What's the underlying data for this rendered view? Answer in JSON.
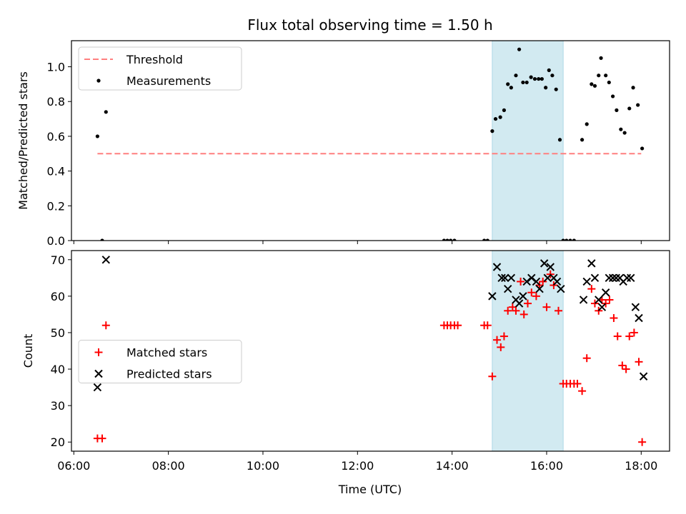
{
  "chart_data": {
    "title": "Flux total observing time = 1.50 h",
    "xlabel": "Time (UTC)",
    "xlim_hours": [
      5.95,
      18.6
    ],
    "xticks": [
      6,
      8,
      10,
      12,
      14,
      16,
      18
    ],
    "xtick_labels": [
      "06:00",
      "08:00",
      "10:00",
      "12:00",
      "14:00",
      "16:00",
      "18:00"
    ],
    "shaded_span_hours": [
      14.85,
      16.35
    ],
    "shaded_color": "#add8e6",
    "panels": [
      {
        "type": "scatter",
        "ylabel": "Matched/Predicted stars",
        "ylim": [
          0,
          1.15
        ],
        "yticks": [
          0.0,
          0.2,
          0.4,
          0.6,
          0.8,
          1.0
        ],
        "ytick_labels": [
          "0.0",
          "0.2",
          "0.4",
          "0.6",
          "0.8",
          "1.0"
        ],
        "legend_position": "upper-left",
        "threshold": {
          "name": "Threshold",
          "value": 0.5,
          "x_range": [
            6.5,
            18.0
          ],
          "color": "#ff7f7f"
        },
        "series": [
          {
            "name": "Measurements",
            "marker": "dot",
            "color": "#000000",
            "points": [
              [
                6.5,
                0.6
              ],
              [
                6.6,
                0.0
              ],
              [
                6.68,
                0.74
              ],
              [
                13.83,
                0.0
              ],
              [
                13.9,
                0.0
              ],
              [
                13.97,
                0.0
              ],
              [
                14.05,
                0.0
              ],
              [
                14.68,
                0.0
              ],
              [
                14.75,
                0.0
              ],
              [
                14.85,
                0.63
              ],
              [
                14.92,
                0.7
              ],
              [
                15.02,
                0.71
              ],
              [
                15.1,
                0.75
              ],
              [
                15.18,
                0.9
              ],
              [
                15.25,
                0.88
              ],
              [
                15.35,
                0.95
              ],
              [
                15.42,
                1.1
              ],
              [
                15.5,
                0.91
              ],
              [
                15.58,
                0.91
              ],
              [
                15.67,
                0.94
              ],
              [
                15.75,
                0.93
              ],
              [
                15.83,
                0.93
              ],
              [
                15.9,
                0.93
              ],
              [
                15.98,
                0.88
              ],
              [
                16.05,
                0.98
              ],
              [
                16.12,
                0.95
              ],
              [
                16.2,
                0.87
              ],
              [
                16.28,
                0.58
              ],
              [
                16.35,
                0.0
              ],
              [
                16.42,
                0.0
              ],
              [
                16.5,
                0.0
              ],
              [
                16.58,
                0.0
              ],
              [
                16.75,
                0.58
              ],
              [
                16.85,
                0.67
              ],
              [
                16.95,
                0.9
              ],
              [
                17.02,
                0.89
              ],
              [
                17.1,
                0.95
              ],
              [
                17.15,
                1.05
              ],
              [
                17.25,
                0.95
              ],
              [
                17.32,
                0.91
              ],
              [
                17.4,
                0.83
              ],
              [
                17.48,
                0.75
              ],
              [
                17.57,
                0.64
              ],
              [
                17.65,
                0.62
              ],
              [
                17.75,
                0.76
              ],
              [
                17.83,
                0.88
              ],
              [
                17.93,
                0.78
              ],
              [
                18.02,
                0.53
              ]
            ]
          }
        ]
      },
      {
        "type": "scatter",
        "ylabel": "Count",
        "ylim": [
          17.5,
          72.5
        ],
        "yticks": [
          20,
          30,
          40,
          50,
          60,
          70
        ],
        "ytick_labels": [
          "20",
          "30",
          "40",
          "50",
          "60",
          "70"
        ],
        "legend_position": "center-left",
        "series": [
          {
            "name": "Matched stars",
            "marker": "plus",
            "color": "#ff0000",
            "points": [
              [
                6.5,
                21
              ],
              [
                6.6,
                21
              ],
              [
                6.68,
                52
              ],
              [
                13.83,
                52
              ],
              [
                13.9,
                52
              ],
              [
                13.97,
                52
              ],
              [
                14.05,
                52
              ],
              [
                14.12,
                52
              ],
              [
                14.68,
                52
              ],
              [
                14.75,
                52
              ],
              [
                14.85,
                38
              ],
              [
                14.95,
                48
              ],
              [
                15.03,
                46
              ],
              [
                15.1,
                49
              ],
              [
                15.18,
                56
              ],
              [
                15.28,
                57
              ],
              [
                15.35,
                56
              ],
              [
                15.45,
                64
              ],
              [
                15.52,
                55
              ],
              [
                15.6,
                58
              ],
              [
                15.68,
                61
              ],
              [
                15.78,
                60
              ],
              [
                15.85,
                63
              ],
              [
                15.92,
                64
              ],
              [
                16.0,
                57
              ],
              [
                16.08,
                66
              ],
              [
                16.15,
                63
              ],
              [
                16.25,
                56
              ],
              [
                16.35,
                36
              ],
              [
                16.42,
                36
              ],
              [
                16.5,
                36
              ],
              [
                16.58,
                36
              ],
              [
                16.65,
                36
              ],
              [
                16.75,
                34
              ],
              [
                16.85,
                43
              ],
              [
                16.95,
                62
              ],
              [
                17.02,
                58
              ],
              [
                17.1,
                56
              ],
              [
                17.17,
                59
              ],
              [
                17.25,
                58
              ],
              [
                17.33,
                59
              ],
              [
                17.42,
                54
              ],
              [
                17.5,
                49
              ],
              [
                17.6,
                41
              ],
              [
                17.68,
                40
              ],
              [
                17.75,
                49
              ],
              [
                17.85,
                50
              ],
              [
                17.95,
                42
              ],
              [
                18.02,
                20
              ]
            ]
          },
          {
            "name": "Predicted stars",
            "marker": "x",
            "color": "#000000",
            "points": [
              [
                6.5,
                35
              ],
              [
                6.68,
                70
              ],
              [
                14.85,
                60
              ],
              [
                14.95,
                68
              ],
              [
                15.05,
                65
              ],
              [
                15.12,
                65
              ],
              [
                15.18,
                62
              ],
              [
                15.25,
                65
              ],
              [
                15.35,
                59
              ],
              [
                15.42,
                58
              ],
              [
                15.5,
                60
              ],
              [
                15.58,
                64
              ],
              [
                15.68,
                65
              ],
              [
                15.78,
                64
              ],
              [
                15.85,
                62
              ],
              [
                15.95,
                69
              ],
              [
                16.02,
                65
              ],
              [
                16.08,
                68
              ],
              [
                16.15,
                65
              ],
              [
                16.22,
                64
              ],
              [
                16.3,
                62
              ],
              [
                16.78,
                59
              ],
              [
                16.85,
                64
              ],
              [
                16.95,
                69
              ],
              [
                17.02,
                65
              ],
              [
                17.1,
                59
              ],
              [
                17.17,
                57
              ],
              [
                17.25,
                61
              ],
              [
                17.32,
                65
              ],
              [
                17.4,
                65
              ],
              [
                17.47,
                65
              ],
              [
                17.55,
                65
              ],
              [
                17.62,
                64
              ],
              [
                17.7,
                65
              ],
              [
                17.78,
                65
              ],
              [
                17.88,
                57
              ],
              [
                17.95,
                54
              ],
              [
                18.05,
                38
              ]
            ]
          }
        ]
      }
    ]
  }
}
